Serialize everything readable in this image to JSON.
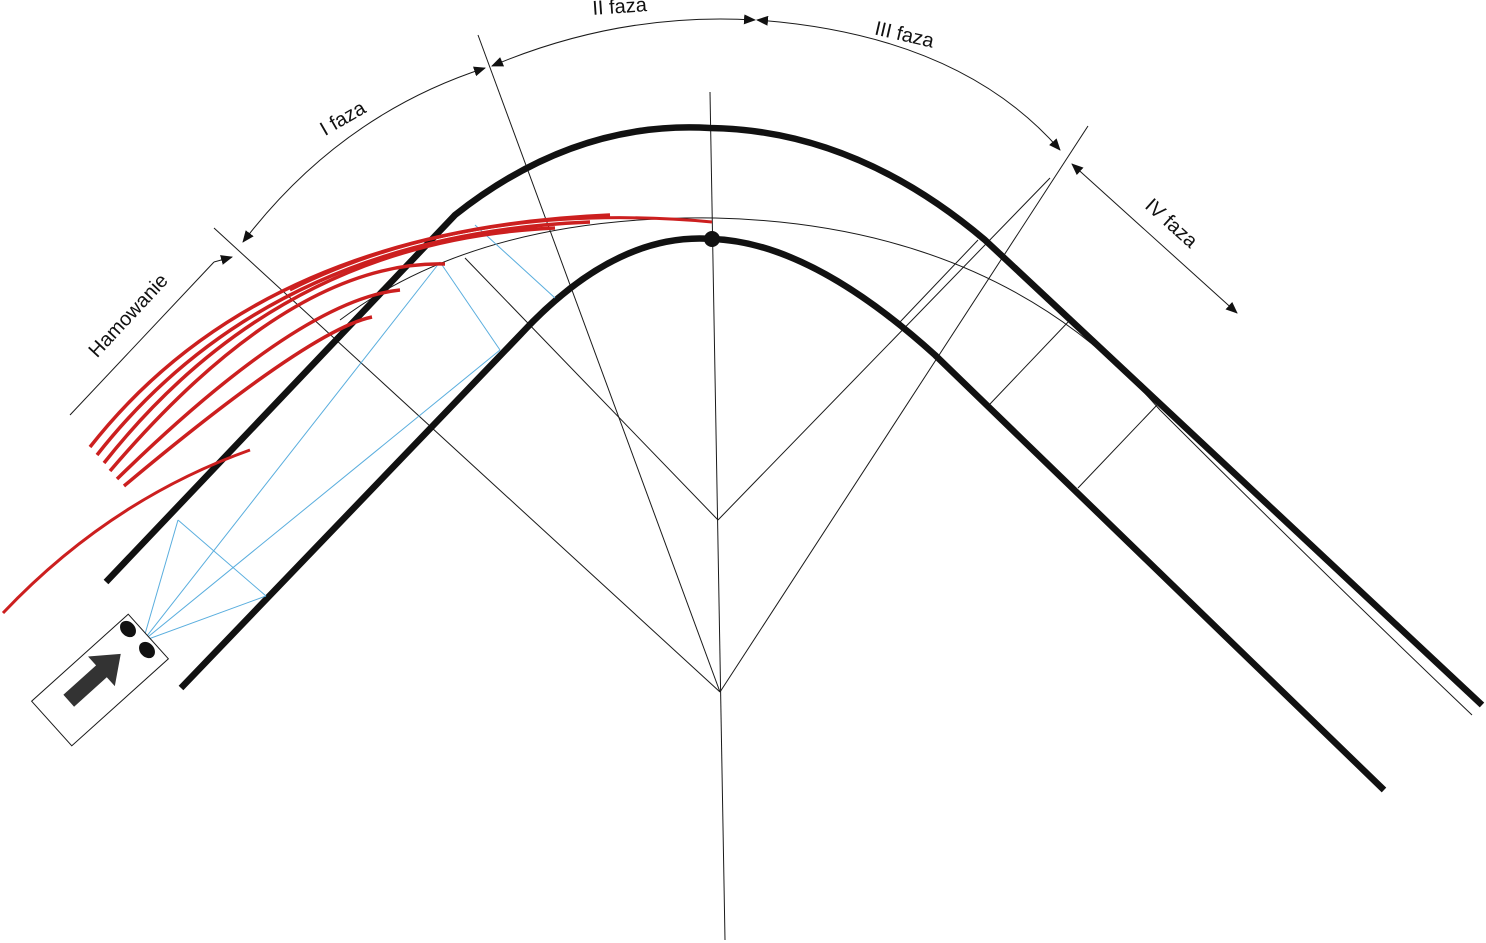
{
  "labels": {
    "braking": "Hamowanie",
    "phase1": "I faza",
    "phase2": "II faza",
    "phase3": "III faza",
    "phase4": "IV faza"
  },
  "colors": {
    "road_edge": "#111111",
    "skid_marks": "#cc1f1f",
    "sight_lines": "#5aaede",
    "construction_lines": "#1a1a1a",
    "vehicle_arrow": "#333333"
  },
  "icons": {
    "vehicle": "vehicle-icon",
    "direction": "arrow-up-right-icon"
  }
}
